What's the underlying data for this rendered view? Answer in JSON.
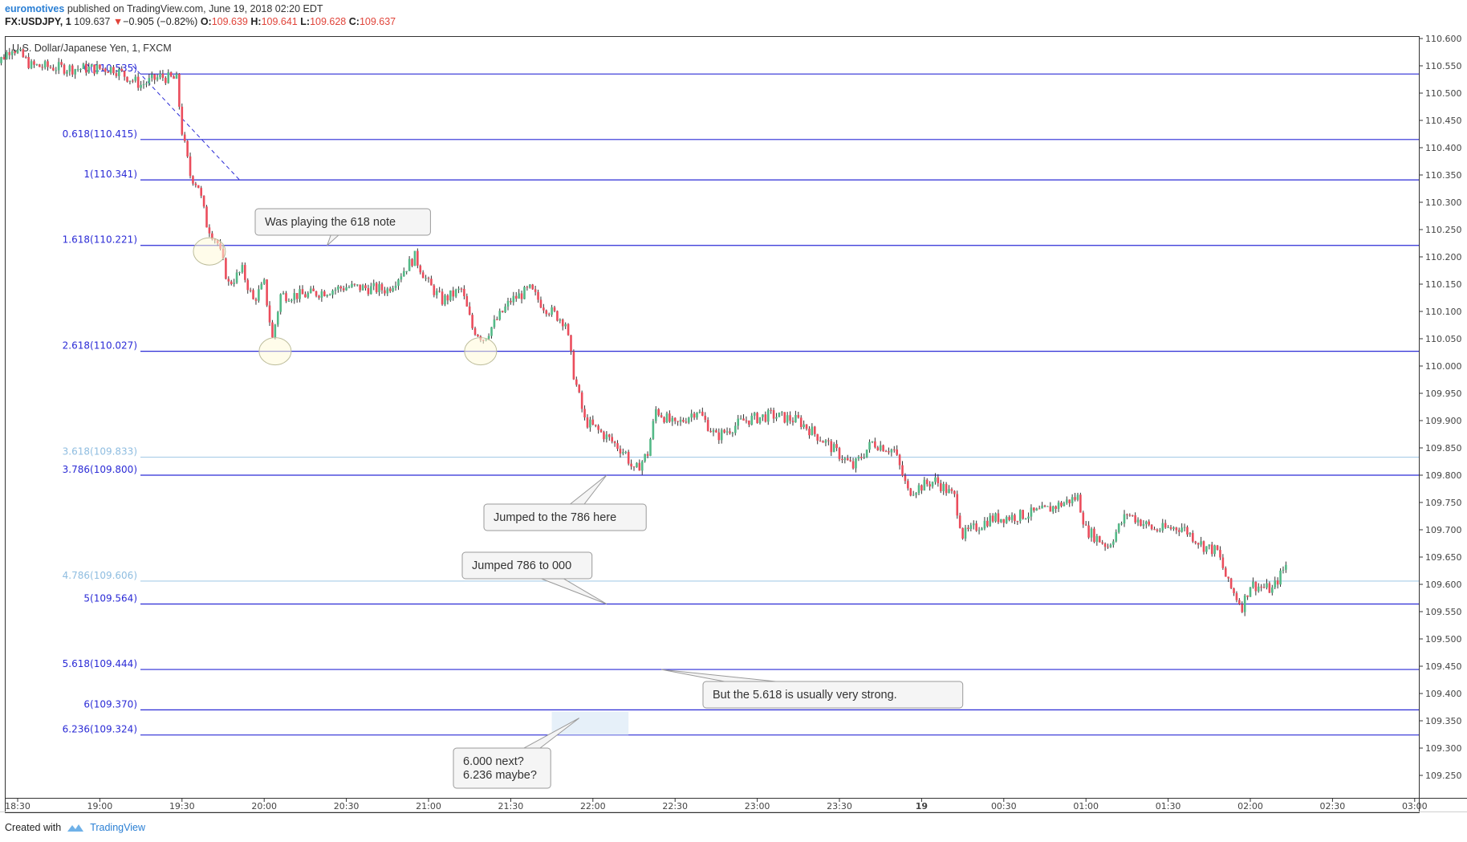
{
  "header": {
    "author": "euromotives",
    "published": "published on TradingView.com, June 19, 2018 02:20 EDT",
    "symbol": "FX:USDJPY, 1",
    "last": "109.637",
    "change": "−0.905 (−0.82%)",
    "open_label": "O:",
    "open": "109.639",
    "high_label": "H:",
    "high": "109.641",
    "low_label": "L:",
    "low": "109.628",
    "close_label": "C:",
    "close": "109.637"
  },
  "footer": {
    "created_with": "Created with",
    "brand": "TradingView"
  },
  "colors": {
    "fib_line": "#2b2bd6",
    "fib_light": "#a9cde8",
    "up": "#53b987",
    "down": "#eb4d5c",
    "wick": "#333333"
  },
  "chart_data": {
    "type": "candlestick",
    "title": "U.S. Dollar/Japanese Yen, 1, FXCM",
    "ylim": [
      109.2,
      110.625
    ],
    "y_ticks": [
      "110.600",
      "110.550",
      "110.500",
      "110.450",
      "110.400",
      "110.350",
      "110.300",
      "110.250",
      "110.200",
      "110.150",
      "110.100",
      "110.050",
      "110.000",
      "109.950",
      "109.900",
      "109.850",
      "109.800",
      "109.750",
      "109.700",
      "109.650",
      "109.600",
      "109.550",
      "109.500",
      "109.450",
      "109.400",
      "109.350",
      "109.300",
      "109.250"
    ],
    "x_ticks": [
      "18:30",
      "19:00",
      "19:30",
      "20:00",
      "20:30",
      "21:00",
      "21:30",
      "22:00",
      "22:30",
      "23:00",
      "23:30",
      "19",
      "00:30",
      "01:00",
      "01:30",
      "02:00",
      "02:30",
      "03:00"
    ],
    "fib_levels": [
      {
        "label": "0(110.535)",
        "price": 110.535,
        "style": "dark"
      },
      {
        "label": "0.618(110.415)",
        "price": 110.415,
        "style": "dark"
      },
      {
        "label": "1(110.341)",
        "price": 110.341,
        "style": "dark"
      },
      {
        "label": "1.618(110.221)",
        "price": 110.221,
        "style": "dark"
      },
      {
        "label": "2.618(110.027)",
        "price": 110.027,
        "style": "dark"
      },
      {
        "label": "3.618(109.833)",
        "price": 109.833,
        "style": "light"
      },
      {
        "label": "3.786(109.800)",
        "price": 109.8,
        "style": "dark"
      },
      {
        "label": "4.786(109.606)",
        "price": 109.606,
        "style": "light"
      },
      {
        "label": "5(109.564)",
        "price": 109.564,
        "style": "dark"
      },
      {
        "label": "5.618(109.444)",
        "price": 109.444,
        "style": "dark"
      },
      {
        "label": "6(109.370)",
        "price": 109.37,
        "style": "dark"
      },
      {
        "label": "6.236(109.324)",
        "price": 109.324,
        "style": "dark"
      }
    ],
    "price_path": [
      {
        "t": "18:20",
        "p": 110.54
      },
      {
        "t": "18:28",
        "p": 110.585
      },
      {
        "t": "18:35",
        "p": 110.55
      },
      {
        "t": "18:50",
        "p": 110.545
      },
      {
        "t": "19:05",
        "p": 110.545
      },
      {
        "t": "19:15",
        "p": 110.515
      },
      {
        "t": "19:22",
        "p": 110.53
      },
      {
        "t": "19:28",
        "p": 110.525
      },
      {
        "t": "19:30",
        "p": 110.43
      },
      {
        "t": "19:33",
        "p": 110.35
      },
      {
        "t": "19:36",
        "p": 110.33
      },
      {
        "t": "19:39",
        "p": 110.26
      },
      {
        "t": "19:43",
        "p": 110.225
      },
      {
        "t": "19:47",
        "p": 110.15
      },
      {
        "t": "19:52",
        "p": 110.175
      },
      {
        "t": "19:56",
        "p": 110.12
      },
      {
        "t": "20:00",
        "p": 110.15
      },
      {
        "t": "20:03",
        "p": 110.05
      },
      {
        "t": "20:06",
        "p": 110.13
      },
      {
        "t": "20:15",
        "p": 110.13
      },
      {
        "t": "20:30",
        "p": 110.145
      },
      {
        "t": "20:45",
        "p": 110.14
      },
      {
        "t": "20:55",
        "p": 110.2
      },
      {
        "t": "21:00",
        "p": 110.15
      },
      {
        "t": "21:05",
        "p": 110.12
      },
      {
        "t": "21:12",
        "p": 110.14
      },
      {
        "t": "21:16",
        "p": 110.07
      },
      {
        "t": "21:20",
        "p": 110.05
      },
      {
        "t": "21:30",
        "p": 110.12
      },
      {
        "t": "21:37",
        "p": 110.14
      },
      {
        "t": "21:42",
        "p": 110.11
      },
      {
        "t": "21:50",
        "p": 110.08
      },
      {
        "t": "21:53",
        "p": 109.985
      },
      {
        "t": "21:57",
        "p": 109.9
      },
      {
        "t": "22:05",
        "p": 109.87
      },
      {
        "t": "22:12",
        "p": 109.84
      },
      {
        "t": "22:15",
        "p": 109.805
      },
      {
        "t": "22:20",
        "p": 109.84
      },
      {
        "t": "22:23",
        "p": 109.92
      },
      {
        "t": "22:30",
        "p": 109.89
      },
      {
        "t": "22:38",
        "p": 109.92
      },
      {
        "t": "22:45",
        "p": 109.87
      },
      {
        "t": "22:55",
        "p": 109.9
      },
      {
        "t": "23:05",
        "p": 109.91
      },
      {
        "t": "23:15",
        "p": 109.9
      },
      {
        "t": "23:25",
        "p": 109.86
      },
      {
        "t": "23:35",
        "p": 109.815
      },
      {
        "t": "23:42",
        "p": 109.86
      },
      {
        "t": "23:50",
        "p": 109.845
      },
      {
        "t": "23:55",
        "p": 109.77
      },
      {
        "t": "00:05",
        "p": 109.79
      },
      {
        "t": "00:12",
        "p": 109.76
      },
      {
        "t": "00:15",
        "p": 109.69
      },
      {
        "t": "00:25",
        "p": 109.72
      },
      {
        "t": "00:35",
        "p": 109.725
      },
      {
        "t": "00:45",
        "p": 109.735
      },
      {
        "t": "00:57",
        "p": 109.76
      },
      {
        "t": "01:00",
        "p": 109.7
      },
      {
        "t": "01:08",
        "p": 109.67
      },
      {
        "t": "01:15",
        "p": 109.73
      },
      {
        "t": "01:25",
        "p": 109.7
      },
      {
        "t": "01:35",
        "p": 109.705
      },
      {
        "t": "01:43",
        "p": 109.67
      },
      {
        "t": "01:48",
        "p": 109.66
      },
      {
        "t": "01:52",
        "p": 109.6
      },
      {
        "t": "01:57",
        "p": 109.56
      },
      {
        "t": "02:00",
        "p": 109.6
      },
      {
        "t": "02:08",
        "p": 109.59
      },
      {
        "t": "02:13",
        "p": 109.635
      }
    ],
    "highlights": [
      {
        "t": "19:40",
        "p": 110.21
      },
      {
        "t": "20:04",
        "p": 110.027
      },
      {
        "t": "21:19",
        "p": 110.027
      }
    ],
    "annotations": [
      {
        "id": "ann1",
        "lines": [
          "Was playing the 618 note"
        ],
        "anchor_t": "20:23",
        "anchor_p": 110.221
      },
      {
        "id": "ann2",
        "lines": [
          "Jumped to the 786 here"
        ],
        "anchor_t": "22:05",
        "anchor_p": 109.8
      },
      {
        "id": "ann3",
        "lines": [
          "Jumped 786 to 000"
        ],
        "anchor_t": "22:05",
        "anchor_p": 109.564
      },
      {
        "id": "ann4",
        "lines": [
          "But the 5.618 is usually very strong."
        ],
        "anchor_t": "22:25",
        "anchor_p": 109.444
      },
      {
        "id": "ann5",
        "lines": [
          "6.000 next?",
          "6.236 maybe?"
        ],
        "anchor_t": "21:55",
        "anchor_p": 109.355
      }
    ]
  }
}
